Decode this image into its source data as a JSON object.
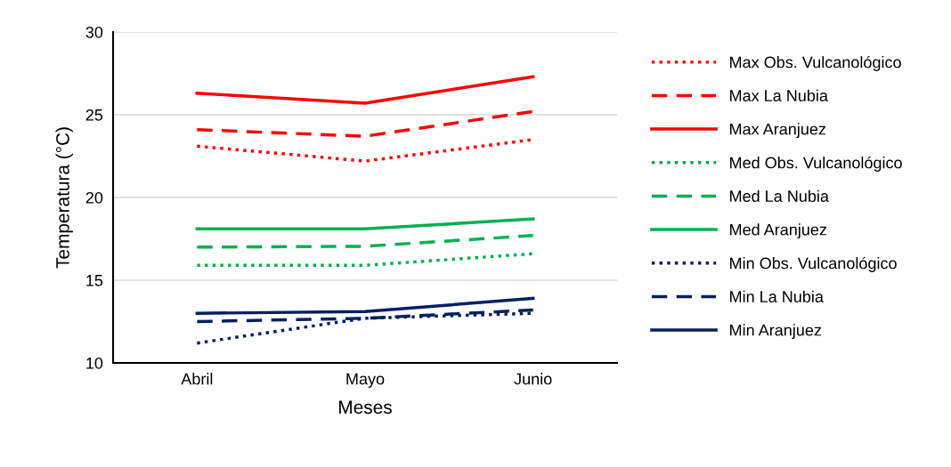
{
  "chart_data": {
    "type": "line",
    "xlabel": "Meses",
    "ylabel": "Temperatura (°C)",
    "categories": [
      "Abril",
      "Mayo",
      "Junio"
    ],
    "ylim": [
      10,
      30
    ],
    "yticks": [
      10,
      15,
      20,
      25,
      30
    ],
    "grid": "y",
    "legend": "right",
    "series": [
      {
        "name": "Max Obs. Vulcanológico",
        "color": "#ff0000",
        "line_style": "dotted",
        "values": [
          23.1,
          22.2,
          23.5
        ]
      },
      {
        "name": "Max La Nubia",
        "color": "#ff0000",
        "line_style": "dashed",
        "values": [
          24.1,
          23.7,
          25.2
        ]
      },
      {
        "name": "Max Aranjuez",
        "color": "#ff0000",
        "line_style": "solid",
        "values": [
          26.3,
          25.7,
          27.3
        ]
      },
      {
        "name": "Med Obs. Vulcanológico",
        "color": "#00b050",
        "line_style": "dotted",
        "values": [
          15.9,
          15.9,
          16.6
        ]
      },
      {
        "name": "Med La Nubia",
        "color": "#00b050",
        "line_style": "dashed",
        "values": [
          17.0,
          17.05,
          17.7
        ]
      },
      {
        "name": "Med Aranjuez",
        "color": "#00b050",
        "line_style": "solid",
        "values": [
          18.1,
          18.1,
          18.7
        ]
      },
      {
        "name": "Min Obs. Vulcanológico",
        "color": "#002060",
        "line_style": "dotted",
        "values": [
          11.2,
          12.7,
          13.0
        ]
      },
      {
        "name": "Min La Nubia",
        "color": "#002060",
        "line_style": "dashed",
        "values": [
          12.5,
          12.7,
          13.2
        ]
      },
      {
        "name": "Min Aranjuez",
        "color": "#002060",
        "line_style": "solid",
        "values": [
          13.0,
          13.1,
          13.9
        ]
      }
    ]
  }
}
